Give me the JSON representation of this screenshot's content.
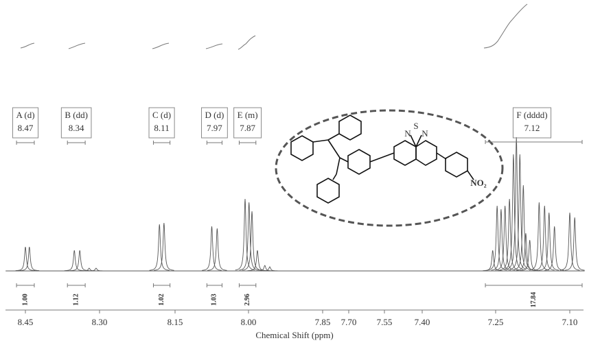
{
  "chart_data": {
    "type": "spectrum",
    "x_label": "Chemical Shift (ppm)",
    "xlim": [
      8.49,
      7.07
    ],
    "xticks": [
      8.45,
      {
        "value": 8.3,
        "label": "8.30"
      },
      8.15,
      {
        "value": 8,
        "label": "8.00"
      },
      7.85,
      {
        "value": 7.7,
        "label": "7.70"
      },
      7.55,
      {
        "value": 7.4,
        "label": "7.40"
      },
      7.25,
      {
        "value": 7.1,
        "label": "7.10"
      }
    ],
    "ylim": [
      0,
      220
    ],
    "color": "#555555",
    "peaks": {
      "x": [
        8.45,
        8.442,
        8.351,
        8.34,
        8.321,
        8.307,
        8.181,
        8.172,
        8.075,
        8.064,
        8.007,
        7.999,
        7.993,
        7.982,
        7.967,
        7.957,
        7.256,
        7.247,
        7.239,
        7.231,
        7.222,
        7.214,
        7.208,
        7.201,
        7.194,
        7.189,
        7.181,
        7.162,
        7.151,
        7.142,
        7.131,
        7.1,
        7.09
      ],
      "values": [
        35,
        35,
        30,
        30,
        4,
        4,
        68,
        70,
        65,
        62,
        105,
        100,
        87,
        30,
        8,
        6,
        30,
        95,
        90,
        95,
        105,
        170,
        195,
        170,
        125,
        55,
        45,
        100,
        95,
        85,
        65,
        85,
        78
      ]
    },
    "multiplets": [
      {
        "label": "A (d)",
        "shift": 8.47,
        "range": [
          8.468,
          8.432
        ],
        "integral": 1,
        "integral_label": "1.00"
      },
      {
        "label": "B (dd)",
        "shift": 8.34,
        "range": [
          8.365,
          8.329
        ],
        "integral": 1.12,
        "integral_label": "1.12"
      },
      {
        "label": "C (d)",
        "shift": 8.11,
        "range": [
          8.193,
          8.16
        ],
        "integral": 1.02,
        "integral_label": "1.02"
      },
      {
        "label": "D (d)",
        "shift": 7.97,
        "range": [
          8.085,
          8.054
        ],
        "integral": 1.03,
        "integral_label": "1.03"
      },
      {
        "label": "E (m)",
        "shift": 7.87,
        "range": [
          8.019,
          7.985
        ],
        "integral": 2.96,
        "integral_label": "2.96"
      },
      {
        "label": "F (dddd)",
        "shift": 7.12,
        "range": [
          7.271,
          7.075
        ],
        "integral": 17.84,
        "integral_label": "17.84"
      }
    ]
  },
  "molecule": {
    "atoms": [
      "S",
      "N",
      "N",
      "NO₂"
    ]
  }
}
